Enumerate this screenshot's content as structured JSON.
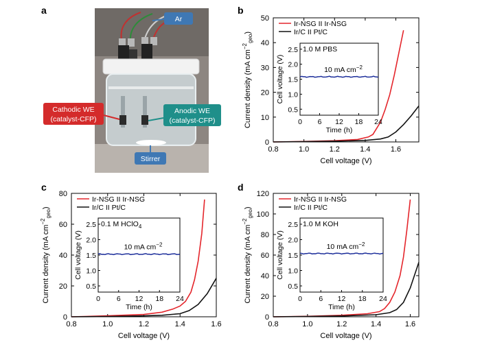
{
  "panel_a": {
    "letter": "a",
    "labels": {
      "ar": "Ar",
      "cathodic_1": "Cathodic WE",
      "cathodic_2": "(catalyst-CFP)",
      "anodic_1": "Anodic WE",
      "anodic_2": "(catalyst-CFP)",
      "stirrer": "Stirrer"
    },
    "colors": {
      "ar": "#3f78b4",
      "cathodic": "#d42b2b",
      "anodic": "#1f8f8a",
      "stirrer": "#3f78b4"
    }
  },
  "chart_data": [
    {
      "panel": "b",
      "type": "line",
      "xlabel": "Cell voltage (V)",
      "ylabel_main": "Current density (mA cm",
      "ylabel_sup": "−2",
      "ylabel_sub": "geo",
      "ylabel_end": ")",
      "xlim": [
        0.8,
        1.75
      ],
      "ylim": [
        0,
        50
      ],
      "xticks": [
        0.8,
        1.0,
        1.2,
        1.4,
        1.6
      ],
      "yticks": [
        0,
        10,
        20,
        30,
        40,
        50
      ],
      "legend_position": "top-left",
      "series": [
        {
          "name": "Ir-NSG II Ir-NSG",
          "color": "#e4252b",
          "x": [
            0.8,
            1.0,
            1.2,
            1.35,
            1.42,
            1.45,
            1.47,
            1.5,
            1.53,
            1.56,
            1.59,
            1.62,
            1.65
          ],
          "y": [
            0.0,
            0.2,
            0.5,
            1.0,
            2.0,
            3.0,
            5.0,
            8.0,
            13.0,
            19.0,
            27.0,
            36.0,
            45.0
          ]
        },
        {
          "name": "Ir/C II Pt/C",
          "color": "#111111",
          "x": [
            0.8,
            1.0,
            1.2,
            1.4,
            1.5,
            1.55,
            1.6,
            1.65,
            1.7,
            1.75
          ],
          "y": [
            0.0,
            0.1,
            0.3,
            0.6,
            1.2,
            2.0,
            4.0,
            7.0,
            10.5,
            14.5
          ]
        }
      ],
      "inset": {
        "text": "1.0 M PBS",
        "annotation": "10 mA cm",
        "annotation_sup": "−2",
        "xlabel": "Time (h)",
        "ylabel": "Cell voltage (V)",
        "xlim": [
          0,
          24
        ],
        "ylim": [
          0.3,
          2.7
        ],
        "xticks": [
          0,
          6,
          12,
          18,
          24
        ],
        "yticks": [
          0.5,
          1.0,
          1.5,
          2.0,
          2.5
        ],
        "color": "#1b2d9a",
        "level": 1.58
      }
    },
    {
      "panel": "c",
      "type": "line",
      "xlabel": "Cell voltage (V)",
      "ylabel_main": "Current density (mA cm",
      "ylabel_sup": "−2",
      "ylabel_sub": "geo",
      "ylabel_end": ")",
      "xlim": [
        0.8,
        1.6
      ],
      "ylim": [
        0,
        80
      ],
      "xticks": [
        0.8,
        1.0,
        1.2,
        1.4,
        1.6
      ],
      "yticks": [
        0,
        20,
        40,
        60,
        80
      ],
      "legend_position": "top-left",
      "series": [
        {
          "name": "Ir-NSG II Ir-NSG",
          "color": "#e4252b",
          "x": [
            0.8,
            1.0,
            1.2,
            1.3,
            1.36,
            1.4,
            1.43,
            1.46,
            1.48,
            1.5,
            1.52,
            1.535
          ],
          "y": [
            0.0,
            0.6,
            1.5,
            3.0,
            5.0,
            7.0,
            10.0,
            16.0,
            24.0,
            36.0,
            54.0,
            76.0
          ]
        },
        {
          "name": "Ir/C II Pt/C",
          "color": "#111111",
          "x": [
            0.8,
            1.0,
            1.2,
            1.3,
            1.4,
            1.45,
            1.5,
            1.55,
            1.6
          ],
          "y": [
            0.0,
            0.2,
            0.6,
            1.0,
            2.0,
            4.0,
            8.0,
            15.0,
            25.0
          ]
        }
      ],
      "inset": {
        "text": "0.1 M HClO",
        "text_sub": "4",
        "annotation": "10 mA cm",
        "annotation_sup": "−2",
        "xlabel": "Time (h)",
        "ylabel": "Cell voltage (V)",
        "xlim": [
          0,
          24
        ],
        "ylim": [
          0.3,
          2.7
        ],
        "xticks": [
          0,
          6,
          12,
          18,
          24
        ],
        "yticks": [
          0.5,
          1.0,
          1.5,
          2.0,
          2.5
        ],
        "color": "#1b2d9a",
        "level": 1.53
      }
    },
    {
      "panel": "d",
      "type": "line",
      "xlabel": "Cell voltage (V)",
      "ylabel_main": "Current density (mA cm",
      "ylabel_sup": "−2",
      "ylabel_sub": "geo",
      "ylabel_end": ")",
      "xlim": [
        0.8,
        1.65
      ],
      "ylim": [
        0,
        120
      ],
      "xticks": [
        0.8,
        1.0,
        1.2,
        1.4,
        1.6
      ],
      "yticks": [
        0,
        20,
        40,
        60,
        80,
        100,
        120
      ],
      "legend_position": "top-left",
      "series": [
        {
          "name": "Ir-NSG II Ir-NSG",
          "color": "#e4252b",
          "x": [
            0.8,
            1.0,
            1.2,
            1.35,
            1.42,
            1.45,
            1.48,
            1.51,
            1.54,
            1.56,
            1.58,
            1.6
          ],
          "y": [
            0.0,
            0.5,
            1.5,
            3.0,
            5.0,
            8.0,
            14.0,
            24.0,
            40.0,
            58.0,
            84.0,
            114.0
          ]
        },
        {
          "name": "Ir/C II Pt/C",
          "color": "#111111",
          "x": [
            0.8,
            1.0,
            1.2,
            1.4,
            1.48,
            1.52,
            1.56,
            1.6,
            1.65
          ],
          "y": [
            0.0,
            0.3,
            0.8,
            2.0,
            4.0,
            7.0,
            14.0,
            28.0,
            53.0
          ]
        }
      ],
      "inset": {
        "text": "1.0 M KOH",
        "annotation": "10 mA cm",
        "annotation_sup": "−2",
        "xlabel": "Time (h)",
        "ylabel": "Cell voltage (V)",
        "xlim": [
          0,
          24
        ],
        "ylim": [
          0.3,
          2.7
        ],
        "xticks": [
          0,
          6,
          12,
          18,
          24
        ],
        "yticks": [
          0.5,
          1.0,
          1.5,
          2.0,
          2.5
        ],
        "color": "#1b2d9a",
        "level": 1.55
      }
    }
  ]
}
